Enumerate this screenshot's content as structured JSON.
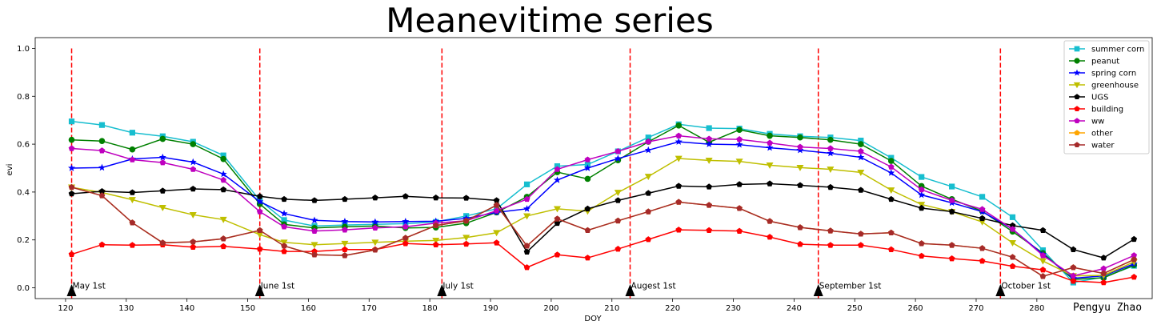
{
  "chart_data": {
    "type": "line",
    "title": "Meanevitime series",
    "xlabel": "DOY",
    "ylabel": "evi",
    "xlim": [
      115,
      299
    ],
    "ylim": [
      -0.045,
      1.045
    ],
    "xticks": [
      120,
      130,
      140,
      150,
      160,
      170,
      180,
      190,
      200,
      210,
      220,
      230,
      240,
      250,
      260,
      270,
      280
    ],
    "yticks": [
      "0.0",
      "0.2",
      "0.4",
      "0.6",
      "0.8",
      "1.0"
    ],
    "grid": false,
    "legend_position": "top-right",
    "x": [
      121,
      126,
      131,
      136,
      141,
      146,
      152,
      156,
      161,
      166,
      171,
      176,
      181,
      186,
      191,
      196,
      201,
      206,
      211,
      216,
      221,
      226,
      231,
      236,
      241,
      246,
      251,
      256,
      261,
      266,
      271,
      276,
      281,
      286,
      291,
      296
    ],
    "series": [
      {
        "name": "summer corn",
        "color": "#17becf",
        "marker": "square",
        "values": [
          0.695,
          0.68,
          0.648,
          0.633,
          0.61,
          0.553,
          0.365,
          0.283,
          0.258,
          0.262,
          0.265,
          0.268,
          0.275,
          0.3,
          0.33,
          0.432,
          0.508,
          0.515,
          0.57,
          0.628,
          0.683,
          0.667,
          0.665,
          0.643,
          0.633,
          0.628,
          0.615,
          0.543,
          0.463,
          0.423,
          0.38,
          0.295,
          0.157,
          0.022,
          0.045,
          0.092
        ]
      },
      {
        "name": "peanut",
        "color": "#008000",
        "marker": "circle",
        "values": [
          0.618,
          0.613,
          0.578,
          0.622,
          0.6,
          0.538,
          0.35,
          0.265,
          0.25,
          0.255,
          0.258,
          0.25,
          0.252,
          0.27,
          0.315,
          0.38,
          0.483,
          0.455,
          0.533,
          0.61,
          0.678,
          0.608,
          0.66,
          0.635,
          0.628,
          0.618,
          0.6,
          0.53,
          0.425,
          0.37,
          0.32,
          0.235,
          0.145,
          0.035,
          0.042,
          0.095
        ]
      },
      {
        "name": "spring corn",
        "color": "#0000ff",
        "marker": "star",
        "values": [
          0.5,
          0.502,
          0.538,
          0.545,
          0.525,
          0.475,
          0.36,
          0.31,
          0.282,
          0.277,
          0.275,
          0.277,
          0.278,
          0.29,
          0.315,
          0.33,
          0.45,
          0.5,
          0.54,
          0.575,
          0.61,
          0.6,
          0.598,
          0.585,
          0.575,
          0.562,
          0.545,
          0.48,
          0.388,
          0.355,
          0.318,
          0.245,
          0.14,
          0.04,
          0.05,
          0.1
        ]
      },
      {
        "name": "greenhouse",
        "color": "#bfbf00",
        "marker": "triangle_down",
        "values": [
          0.42,
          0.398,
          0.368,
          0.335,
          0.305,
          0.285,
          0.222,
          0.19,
          0.18,
          0.185,
          0.19,
          0.195,
          0.198,
          0.21,
          0.23,
          0.3,
          0.33,
          0.32,
          0.398,
          0.465,
          0.54,
          0.532,
          0.528,
          0.512,
          0.502,
          0.495,
          0.482,
          0.408,
          0.348,
          0.318,
          0.275,
          0.188,
          0.112,
          0.05,
          0.052,
          0.108
        ]
      },
      {
        "name": "UGS",
        "color": "#000000",
        "marker": "pentagon",
        "values": [
          0.393,
          0.403,
          0.398,
          0.405,
          0.413,
          0.41,
          0.382,
          0.37,
          0.365,
          0.37,
          0.376,
          0.382,
          0.376,
          0.375,
          0.365,
          0.15,
          0.27,
          0.33,
          0.365,
          0.395,
          0.425,
          0.422,
          0.432,
          0.435,
          0.428,
          0.42,
          0.408,
          0.37,
          0.333,
          0.318,
          0.29,
          0.26,
          0.24,
          0.16,
          0.125,
          0.203
        ]
      },
      {
        "name": "building",
        "color": "#ff0000",
        "marker": "pentagon",
        "values": [
          0.14,
          0.18,
          0.178,
          0.18,
          0.17,
          0.173,
          0.162,
          0.152,
          0.152,
          0.16,
          0.16,
          0.185,
          0.18,
          0.183,
          0.188,
          0.085,
          0.138,
          0.125,
          0.162,
          0.202,
          0.242,
          0.24,
          0.237,
          0.212,
          0.182,
          0.178,
          0.178,
          0.16,
          0.133,
          0.122,
          0.112,
          0.09,
          0.075,
          0.028,
          0.022,
          0.045
        ]
      },
      {
        "name": "ww",
        "color": "#bf00bf",
        "marker": "pentagon",
        "values": [
          0.582,
          0.573,
          0.535,
          0.523,
          0.495,
          0.45,
          0.318,
          0.255,
          0.237,
          0.242,
          0.25,
          0.255,
          0.27,
          0.28,
          0.322,
          0.37,
          0.495,
          0.535,
          0.57,
          0.61,
          0.635,
          0.622,
          0.62,
          0.605,
          0.588,
          0.582,
          0.57,
          0.505,
          0.41,
          0.365,
          0.328,
          0.245,
          0.135,
          0.05,
          0.08,
          0.135
        ]
      },
      {
        "name": "other",
        "color": "#ffa500",
        "marker": "pentagon",
        "values": [
          0.42,
          0.385,
          0.272,
          0.188,
          0.192,
          0.205,
          0.24,
          0.175,
          0.138,
          0.135,
          0.158,
          0.208,
          0.26,
          0.28,
          0.345,
          0.175,
          0.288,
          0.24,
          0.28,
          0.318,
          0.358,
          0.345,
          0.332,
          0.278,
          0.252,
          0.238,
          0.225,
          0.23,
          0.185,
          0.178,
          0.165,
          0.128,
          0.048,
          0.085,
          0.06,
          0.118
        ]
      },
      {
        "name": "water",
        "color": "#a52a2a",
        "marker": "pentagon",
        "values": [
          0.42,
          0.385,
          0.272,
          0.188,
          0.192,
          0.205,
          0.24,
          0.175,
          0.138,
          0.135,
          0.158,
          0.208,
          0.26,
          0.28,
          0.345,
          0.175,
          0.288,
          0.24,
          0.28,
          0.318,
          0.358,
          0.345,
          0.332,
          0.278,
          0.252,
          0.238,
          0.225,
          0.23,
          0.185,
          0.178,
          0.165,
          0.128,
          0.048,
          0.085,
          0.06,
          0.118
        ]
      }
    ],
    "vlines": [
      {
        "x": 121,
        "label": "May 1st"
      },
      {
        "x": 152,
        "label": "June 1st"
      },
      {
        "x": 182,
        "label": "July 1st"
      },
      {
        "x": 213,
        "label": "Augest 1st"
      },
      {
        "x": 244,
        "label": "September 1st"
      },
      {
        "x": 274,
        "label": "October 1st"
      }
    ],
    "vline_color": "#ff0000",
    "author": "Pengyu Zhao"
  }
}
